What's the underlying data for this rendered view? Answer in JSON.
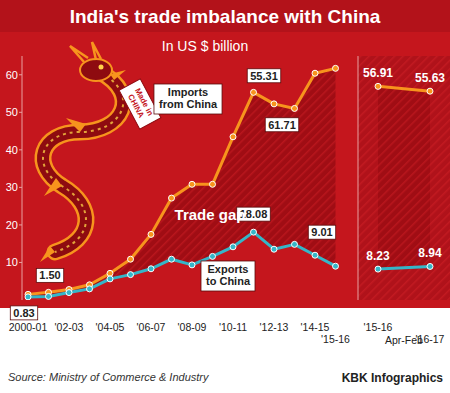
{
  "chart_data": [
    {
      "type": "line",
      "title": "India's trade imbalance with China",
      "subtitle": "In US $ billion",
      "categories": [
        "2000-01",
        null,
        "'02-03",
        null,
        "'04-05",
        null,
        "'06-07",
        null,
        "'08-09",
        null,
        "'10-11",
        null,
        "'12-13",
        null,
        "'14-15",
        "'15-16"
      ],
      "series": [
        {
          "name": "Imports from China",
          "color": "#f7941d",
          "values": [
            1.5,
            2.04,
            2.79,
            4.05,
            7.1,
            10.87,
            17.48,
            27.15,
            30.82,
            30.82,
            43.48,
            55.31,
            52.25,
            51.03,
            60.41,
            61.71
          ],
          "value_labels": [
            "1.50",
            null,
            null,
            null,
            null,
            null,
            null,
            null,
            null,
            null,
            null,
            "55.31",
            null,
            null,
            null,
            "61.71"
          ]
        },
        {
          "name": "Exports to China",
          "color": "#35b6c8",
          "values": [
            0.83,
            0.95,
            1.98,
            2.96,
            5.62,
            6.76,
            8.32,
            10.87,
            9.35,
            11.62,
            14.17,
            18.08,
            13.53,
            14.82,
            11.93,
            9.01
          ],
          "value_labels": [
            "0.83",
            null,
            null,
            null,
            null,
            null,
            null,
            null,
            null,
            null,
            null,
            "18.08",
            null,
            null,
            null,
            "9.01"
          ]
        }
      ],
      "ylim": [
        0,
        65
      ],
      "yticks": [
        10,
        20,
        30,
        40,
        50,
        60
      ],
      "grid": false,
      "data_labels": true,
      "annotations": [
        "Trade gap",
        "Made in CHINA"
      ],
      "source": "Source: Ministry of Commerce & Industry",
      "credit": "KBK Infographics"
    },
    {
      "type": "line",
      "subtitle": "Apr-Feb",
      "categories": [
        "'15-16",
        "'16-17"
      ],
      "series": [
        {
          "color": "#f7941d",
          "values": [
            56.91,
            55.63
          ]
        },
        {
          "color": "#35b6c8",
          "values": [
            8.23,
            8.94
          ]
        }
      ],
      "ylim": [
        0,
        65
      ],
      "grid": false,
      "data_labels": true,
      "tick_labels": "x"
    }
  ]
}
